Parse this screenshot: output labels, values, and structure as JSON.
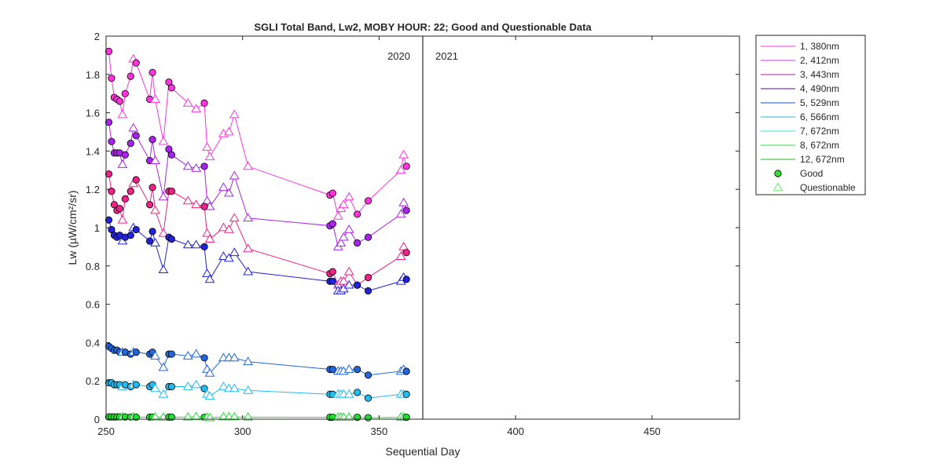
{
  "chart_data": {
    "type": "scatter",
    "title": "SGLI Total Band,  Lw2, MOBY HOUR: 22;  Good and Questionable Data",
    "xlabel": "Sequential Day",
    "ylabel": "Lw (µW/cm²/sr)",
    "xlim": [
      250,
      482
    ],
    "ylim": [
      0,
      2
    ],
    "xticks": [
      "250",
      "300",
      "350",
      "400",
      "450"
    ],
    "yticks": [
      "0",
      "0.2",
      "0.4",
      "0.6",
      "0.8",
      "1",
      "1.2",
      "1.4",
      "1.6",
      "1.8",
      "2"
    ],
    "grid": false,
    "year_boundary": {
      "x": 366,
      "left_label": "2020",
      "right_label": "2021"
    },
    "legend": {
      "placement": "outside-right",
      "entries": [
        {
          "label": "1, 380nm",
          "color": "#ff33ee"
        },
        {
          "label": "2, 412nm",
          "color": "#cc33ee"
        },
        {
          "label": "3, 443nm",
          "color": "#aa2299"
        },
        {
          "label": "4, 490nm",
          "color": "#551177"
        },
        {
          "label": "5, 529nm",
          "color": "#1155cc"
        },
        {
          "label": "6, 566nm",
          "color": "#22bbdd"
        },
        {
          "label": "7, 672nm",
          "color": "#33eebb"
        },
        {
          "label": "8, 672nm",
          "color": "#33dd44"
        },
        {
          "label": "12, 672nm",
          "color": "#22bb22"
        },
        {
          "label": "Good",
          "marker": "circle",
          "color": "#33dd33"
        },
        {
          "label": "Questionable",
          "marker": "triangle",
          "color": "#66ee66"
        }
      ]
    },
    "series": [
      {
        "color": "#ff33dd",
        "x": [
          251,
          252,
          253,
          254,
          255,
          256,
          257,
          259,
          260,
          261,
          266,
          267,
          268,
          271,
          273,
          274,
          280,
          283,
          286,
          287,
          288,
          293,
          295,
          297,
          302,
          332,
          333,
          335,
          336,
          337,
          339,
          342,
          346,
          358,
          359,
          360
        ],
        "y": [
          1.92,
          1.78,
          1.68,
          1.67,
          1.66,
          1.59,
          1.7,
          1.79,
          1.88,
          1.86,
          1.67,
          1.81,
          1.67,
          1.45,
          1.76,
          1.73,
          1.65,
          1.62,
          1.65,
          1.42,
          1.37,
          1.49,
          1.5,
          1.59,
          1.32,
          1.17,
          1.18,
          1.06,
          1.1,
          1.12,
          1.16,
          1.07,
          1.14,
          1.3,
          1.38,
          1.32
        ],
        "quality": [
          "G",
          "G",
          "G",
          "G",
          "G",
          "Q",
          "G",
          "G",
          "Q",
          "G",
          "G",
          "G",
          "Q",
          "Q",
          "G",
          "G",
          "Q",
          "Q",
          "G",
          "Q",
          "Q",
          "Q",
          "Q",
          "Q",
          "Q",
          "G",
          "G",
          "Q",
          "Q",
          "Q",
          "Q",
          "G",
          "G",
          "Q",
          "Q",
          "G"
        ]
      },
      {
        "color": "#aa22ee",
        "x": [
          251,
          252,
          253,
          254,
          255,
          256,
          257,
          259,
          260,
          261,
          266,
          267,
          268,
          271,
          273,
          274,
          280,
          283,
          286,
          287,
          288,
          293,
          295,
          297,
          302,
          332,
          333,
          335,
          336,
          337,
          339,
          342,
          346,
          358,
          359,
          360
        ],
        "y": [
          1.55,
          1.45,
          1.39,
          1.39,
          1.39,
          1.33,
          1.38,
          1.44,
          1.52,
          1.48,
          1.35,
          1.46,
          1.35,
          1.16,
          1.41,
          1.38,
          1.32,
          1.31,
          1.32,
          1.14,
          1.11,
          1.21,
          1.18,
          1.27,
          1.05,
          1.01,
          1.02,
          0.9,
          0.92,
          0.95,
          0.99,
          0.92,
          0.95,
          1.07,
          1.13,
          1.09
        ],
        "quality": [
          "G",
          "G",
          "G",
          "G",
          "G",
          "Q",
          "G",
          "G",
          "Q",
          "G",
          "G",
          "G",
          "Q",
          "Q",
          "G",
          "G",
          "Q",
          "Q",
          "G",
          "Q",
          "Q",
          "Q",
          "Q",
          "Q",
          "Q",
          "G",
          "G",
          "Q",
          "Q",
          "Q",
          "Q",
          "G",
          "G",
          "Q",
          "Q",
          "G"
        ]
      },
      {
        "color": "#ee2288",
        "x": [
          251,
          252,
          253,
          254,
          255,
          256,
          257,
          259,
          260,
          261,
          266,
          267,
          268,
          271,
          273,
          274,
          280,
          283,
          286,
          287,
          288,
          293,
          295,
          297,
          302,
          332,
          333,
          335,
          336,
          337,
          339,
          342,
          346,
          358,
          359,
          360
        ],
        "y": [
          1.28,
          1.19,
          1.12,
          1.09,
          1.1,
          1.04,
          1.15,
          1.19,
          1.23,
          1.25,
          1.12,
          1.21,
          1.09,
          0.97,
          1.19,
          1.19,
          1.14,
          1.12,
          1.11,
          0.97,
          0.94,
          1.0,
          0.99,
          1.05,
          0.89,
          0.76,
          0.77,
          0.7,
          0.72,
          0.72,
          0.77,
          0.7,
          0.74,
          0.85,
          0.9,
          0.87
        ],
        "quality": [
          "G",
          "G",
          "G",
          "G",
          "G",
          "Q",
          "G",
          "G",
          "Q",
          "G",
          "G",
          "G",
          "Q",
          "Q",
          "G",
          "G",
          "Q",
          "Q",
          "G",
          "Q",
          "Q",
          "Q",
          "Q",
          "Q",
          "Q",
          "G",
          "G",
          "Q",
          "Q",
          "Q",
          "Q",
          "G",
          "G",
          "Q",
          "Q",
          "G"
        ]
      },
      {
        "color": "#2222dd",
        "x": [
          251,
          252,
          253,
          254,
          255,
          256,
          257,
          259,
          260,
          261,
          266,
          267,
          268,
          271,
          273,
          274,
          280,
          283,
          286,
          287,
          288,
          293,
          295,
          297,
          302,
          332,
          333,
          335,
          336,
          337,
          339,
          342,
          346,
          358,
          359,
          360
        ],
        "y": [
          1.04,
          0.99,
          0.96,
          0.95,
          0.96,
          0.93,
          0.95,
          0.96,
          1.0,
          0.99,
          0.93,
          0.98,
          0.92,
          0.78,
          0.95,
          0.94,
          0.91,
          0.91,
          0.9,
          0.76,
          0.73,
          0.85,
          0.84,
          0.87,
          0.77,
          0.72,
          0.72,
          0.67,
          0.67,
          0.68,
          0.7,
          0.7,
          0.67,
          0.72,
          0.74,
          0.73
        ],
        "quality": [
          "G",
          "G",
          "G",
          "G",
          "G",
          "Q",
          "G",
          "G",
          "Q",
          "G",
          "G",
          "G",
          "Q",
          "Q",
          "G",
          "G",
          "Q",
          "Q",
          "G",
          "Q",
          "Q",
          "Q",
          "Q",
          "Q",
          "Q",
          "G",
          "G",
          "Q",
          "Q",
          "Q",
          "Q",
          "G",
          "G",
          "Q",
          "Q",
          "G"
        ]
      },
      {
        "color": "#2266dd",
        "x": [
          251,
          252,
          253,
          254,
          255,
          256,
          257,
          259,
          260,
          261,
          266,
          267,
          268,
          271,
          273,
          274,
          280,
          283,
          286,
          287,
          288,
          293,
          295,
          297,
          302,
          332,
          333,
          335,
          336,
          337,
          339,
          342,
          346,
          358,
          359,
          360
        ],
        "y": [
          0.38,
          0.37,
          0.36,
          0.36,
          0.35,
          0.35,
          0.35,
          0.34,
          0.35,
          0.35,
          0.34,
          0.35,
          0.33,
          0.27,
          0.34,
          0.34,
          0.33,
          0.34,
          0.32,
          0.26,
          0.24,
          0.32,
          0.32,
          0.32,
          0.3,
          0.26,
          0.26,
          0.25,
          0.25,
          0.25,
          0.26,
          0.26,
          0.23,
          0.25,
          0.26,
          0.25
        ],
        "quality": [
          "G",
          "G",
          "G",
          "G",
          "G",
          "Q",
          "G",
          "G",
          "Q",
          "G",
          "G",
          "G",
          "Q",
          "Q",
          "G",
          "G",
          "Q",
          "Q",
          "G",
          "Q",
          "Q",
          "Q",
          "Q",
          "Q",
          "Q",
          "G",
          "G",
          "Q",
          "Q",
          "Q",
          "Q",
          "G",
          "G",
          "Q",
          "Q",
          "G"
        ]
      },
      {
        "color": "#22bbee",
        "x": [
          251,
          252,
          253,
          254,
          255,
          256,
          257,
          259,
          260,
          261,
          266,
          267,
          268,
          271,
          273,
          274,
          280,
          283,
          286,
          287,
          288,
          293,
          295,
          297,
          302,
          332,
          333,
          335,
          336,
          337,
          339,
          342,
          346,
          358,
          359,
          360
        ],
        "y": [
          0.19,
          0.19,
          0.18,
          0.18,
          0.18,
          0.17,
          0.18,
          0.17,
          0.18,
          0.18,
          0.17,
          0.18,
          0.16,
          0.13,
          0.17,
          0.17,
          0.17,
          0.18,
          0.16,
          0.13,
          0.12,
          0.17,
          0.16,
          0.16,
          0.15,
          0.13,
          0.13,
          0.13,
          0.13,
          0.13,
          0.13,
          0.14,
          0.11,
          0.13,
          0.13,
          0.13
        ],
        "quality": [
          "G",
          "G",
          "G",
          "G",
          "G",
          "Q",
          "G",
          "G",
          "Q",
          "G",
          "G",
          "G",
          "Q",
          "Q",
          "G",
          "G",
          "Q",
          "Q",
          "G",
          "Q",
          "Q",
          "Q",
          "Q",
          "Q",
          "Q",
          "G",
          "G",
          "Q",
          "Q",
          "Q",
          "Q",
          "G",
          "G",
          "Q",
          "Q",
          "G"
        ]
      },
      {
        "color": "#22dd33",
        "x": [
          251,
          252,
          253,
          254,
          255,
          256,
          257,
          259,
          260,
          261,
          266,
          267,
          268,
          271,
          273,
          274,
          280,
          283,
          286,
          287,
          288,
          293,
          295,
          297,
          302,
          332,
          333,
          335,
          336,
          337,
          339,
          342,
          346,
          358,
          359,
          360
        ],
        "y": [
          0.012,
          0.012,
          0.012,
          0.012,
          0.012,
          0.012,
          0.012,
          0.011,
          0.012,
          0.011,
          0.011,
          0.011,
          0.011,
          0.01,
          0.011,
          0.011,
          0.011,
          0.013,
          0.01,
          0.009,
          0.008,
          0.012,
          0.012,
          0.012,
          0.011,
          0.01,
          0.01,
          0.01,
          0.01,
          0.01,
          0.01,
          0.01,
          0.008,
          0.01,
          0.011,
          0.01
        ],
        "quality": [
          "G",
          "G",
          "G",
          "G",
          "G",
          "Q",
          "G",
          "G",
          "Q",
          "G",
          "G",
          "G",
          "Q",
          "Q",
          "G",
          "G",
          "Q",
          "Q",
          "G",
          "Q",
          "Q",
          "Q",
          "Q",
          "Q",
          "Q",
          "G",
          "G",
          "Q",
          "Q",
          "Q",
          "Q",
          "G",
          "G",
          "Q",
          "Q",
          "G"
        ]
      }
    ]
  }
}
